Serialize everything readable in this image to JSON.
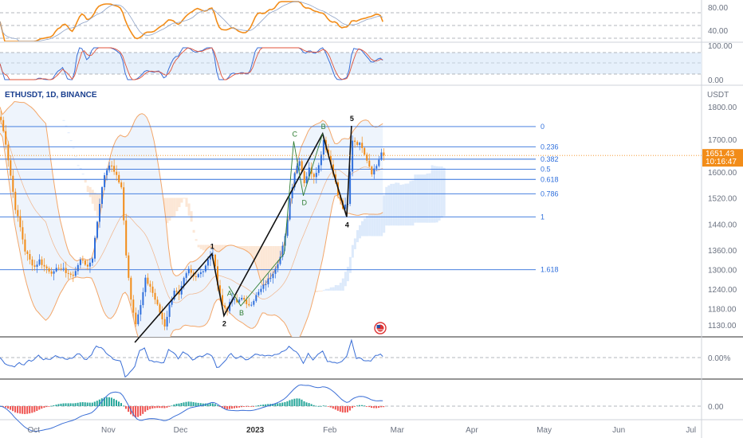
{
  "symbol_label": "ETHUSDT, 1D, BINANCE",
  "currency": "USDT",
  "current_price": "1651.43",
  "countdown": "10:16:47",
  "colors": {
    "accent_blue": "#2f6fdc",
    "price_tag": "#f28c18",
    "rsi_line": "#f28c18",
    "stoch_line_k": "#3b6fd6",
    "stoch_line_d": "#e0533a",
    "osc_line": "#3b6fd6",
    "wave_line": "#111111",
    "pattern_green": "#2e7d32"
  },
  "panes": {
    "rsi": {
      "ticks": [
        "80.00",
        "40.00"
      ]
    },
    "stoch": {
      "ticks": [
        "100.00",
        "0.00"
      ]
    },
    "osc": {
      "ticks": [
        "0.00%"
      ]
    },
    "macd": {
      "ticks": [
        "0.00"
      ]
    }
  },
  "chart_data": {
    "type": "candlestick",
    "title": "ETHUSDT, 1D, BINANCE",
    "ylabel": "USDT",
    "ylim": [
      1095,
      1840
    ],
    "y_ticks": [
      1800,
      1700,
      1600,
      1520,
      1440,
      1360,
      1300,
      1240,
      1180,
      1130
    ],
    "y_tick_labels": [
      "1800.00",
      "1700.00",
      "1600.00",
      "1520.00",
      "1440.00",
      "1360.00",
      "1300.00",
      "1240.00",
      "1180.00",
      "1130.00"
    ],
    "x_tick_labels": [
      "Oct",
      "Nov",
      "Dec",
      "2023",
      "Feb",
      "Mar",
      "Apr",
      "May",
      "Jun",
      "Jul"
    ],
    "x_ticks_day": [
      14,
      45,
      75,
      106,
      137,
      165,
      196,
      226,
      257,
      287
    ],
    "last_day": 159,
    "current_price": 1651.43,
    "fibonacci_levels": [
      {
        "label": "0",
        "price": 1740
      },
      {
        "label": "0.236",
        "price": 1678
      },
      {
        "label": "0.382",
        "price": 1640
      },
      {
        "label": "0.5",
        "price": 1609
      },
      {
        "label": "0.618",
        "price": 1578
      },
      {
        "label": "0.786",
        "price": 1534
      },
      {
        "label": "1",
        "price": 1463
      },
      {
        "label": "1.618",
        "price": 1301
      }
    ],
    "elliott_wave": [
      {
        "label": "",
        "day": 56,
        "price": 1078
      },
      {
        "label": "1",
        "day": 88,
        "price": 1350
      },
      {
        "label": "2",
        "day": 93,
        "price": 1160
      },
      {
        "label": "",
        "day": 134,
        "price": 1718
      },
      {
        "label": "",
        "day": 138,
        "price": 1610
      },
      {
        "label": "4",
        "day": 144,
        "price": 1463
      },
      {
        "label": "5",
        "day": 146,
        "price": 1742
      }
    ],
    "abcd_patterns": [
      {
        "points": [
          {
            "label": "A",
            "day": 95,
            "price": 1250
          },
          {
            "label": "B",
            "day": 100,
            "price": 1190
          },
          {
            "label": "",
            "day": 118,
            "price": 1350
          }
        ]
      },
      {
        "points": [
          {
            "label": "",
            "day": 118,
            "price": 1350
          },
          {
            "label": "C",
            "day": 122,
            "price": 1695
          },
          {
            "label": "D",
            "day": 126,
            "price": 1528
          },
          {
            "label": "B",
            "day": 134,
            "price": 1718
          }
        ]
      }
    ],
    "close_path": [
      [
        0,
        1760
      ],
      [
        2,
        1690
      ],
      [
        4,
        1590
      ],
      [
        6,
        1490
      ],
      [
        8,
        1430
      ],
      [
        10,
        1360
      ],
      [
        12,
        1330
      ],
      [
        14,
        1310
      ],
      [
        16,
        1330
      ],
      [
        18,
        1310
      ],
      [
        20,
        1300
      ],
      [
        22,
        1290
      ],
      [
        24,
        1310
      ],
      [
        26,
        1300
      ],
      [
        28,
        1290
      ],
      [
        30,
        1280
      ],
      [
        32,
        1320
      ],
      [
        34,
        1330
      ],
      [
        36,
        1310
      ],
      [
        38,
        1340
      ],
      [
        40,
        1450
      ],
      [
        42,
        1560
      ],
      [
        44,
        1610
      ],
      [
        46,
        1620
      ],
      [
        48,
        1590
      ],
      [
        50,
        1550
      ],
      [
        52,
        1350
      ],
      [
        54,
        1210
      ],
      [
        56,
        1140
      ],
      [
        58,
        1190
      ],
      [
        60,
        1270
      ],
      [
        62,
        1250
      ],
      [
        64,
        1210
      ],
      [
        66,
        1170
      ],
      [
        68,
        1130
      ],
      [
        70,
        1190
      ],
      [
        72,
        1240
      ],
      [
        74,
        1220
      ],
      [
        76,
        1270
      ],
      [
        78,
        1300
      ],
      [
        80,
        1280
      ],
      [
        82,
        1290
      ],
      [
        84,
        1300
      ],
      [
        86,
        1330
      ],
      [
        88,
        1350
      ],
      [
        90,
        1260
      ],
      [
        92,
        1190
      ],
      [
        94,
        1180
      ],
      [
        96,
        1210
      ],
      [
        98,
        1200
      ],
      [
        100,
        1220
      ],
      [
        102,
        1190
      ],
      [
        104,
        1200
      ],
      [
        106,
        1220
      ],
      [
        108,
        1240
      ],
      [
        110,
        1260
      ],
      [
        112,
        1280
      ],
      [
        114,
        1310
      ],
      [
        116,
        1340
      ],
      [
        118,
        1400
      ],
      [
        120,
        1520
      ],
      [
        122,
        1600
      ],
      [
        124,
        1640
      ],
      [
        126,
        1570
      ],
      [
        128,
        1610
      ],
      [
        130,
        1590
      ],
      [
        132,
        1620
      ],
      [
        134,
        1700
      ],
      [
        136,
        1650
      ],
      [
        138,
        1600
      ],
      [
        140,
        1530
      ],
      [
        142,
        1490
      ],
      [
        144,
        1500
      ],
      [
        146,
        1700
      ],
      [
        148,
        1690
      ],
      [
        150,
        1680
      ],
      [
        152,
        1640
      ],
      [
        154,
        1600
      ],
      [
        156,
        1620
      ],
      [
        158,
        1660
      ],
      [
        159,
        1651
      ]
    ]
  }
}
